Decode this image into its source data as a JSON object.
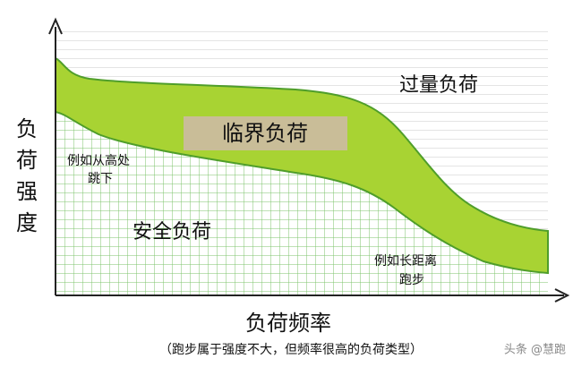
{
  "y_axis_label": [
    "负",
    "荷",
    "强",
    "度"
  ],
  "x_axis_label": "负荷频率",
  "x_axis_note": "（跑步属于强度不大，但频率很高的负荷类型）",
  "regions": {
    "overload": "过量负荷",
    "critical": "临界负荷",
    "safe": "安全负荷"
  },
  "examples": {
    "high_jump": [
      "例如从高处",
      "跳下"
    ],
    "long_run": [
      "例如长距离",
      "跑步"
    ]
  },
  "watermark": "头条 @慧跑"
}
